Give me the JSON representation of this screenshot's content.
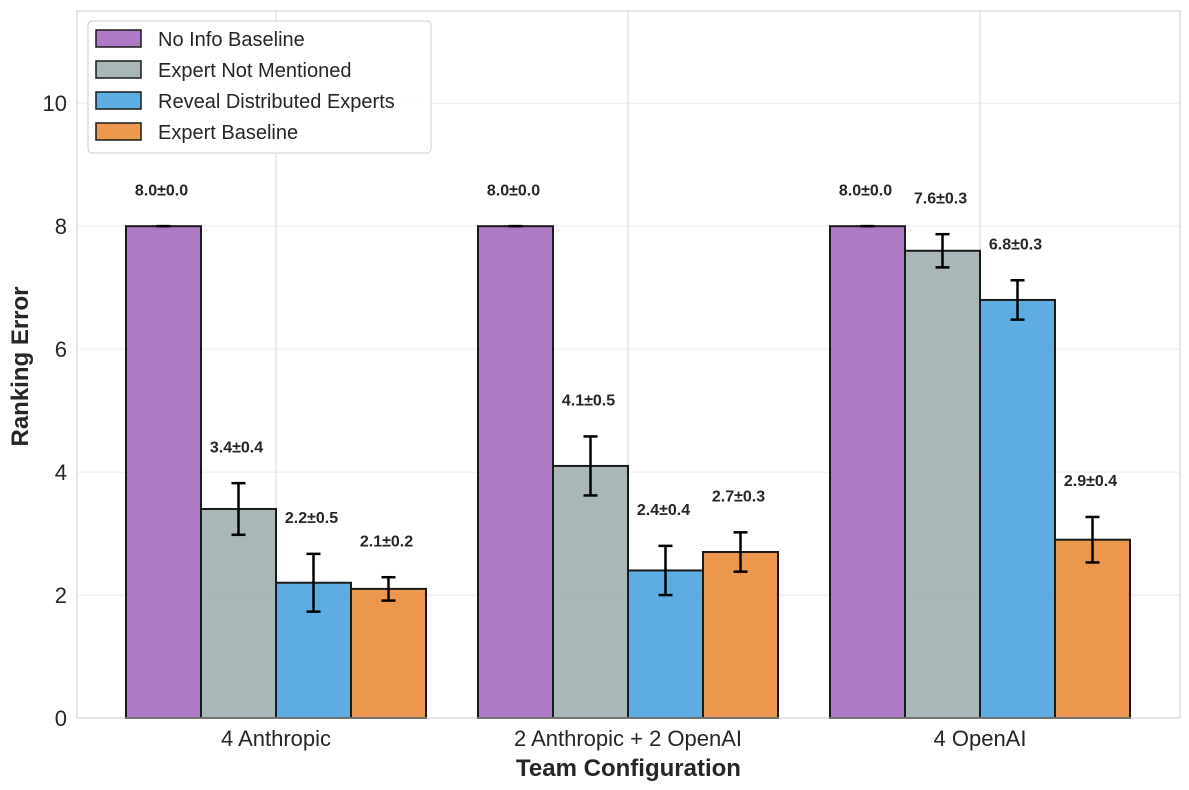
{
  "chart_data": {
    "type": "bar",
    "title": "",
    "xlabel": "Team Configuration",
    "ylabel": "Ranking Error",
    "ylim": [
      0,
      11.5
    ],
    "yticks": [
      0,
      2,
      4,
      6,
      8,
      10
    ],
    "grid": true,
    "legend_position": "top-left",
    "categories": [
      "4 Anthropic",
      "2 Anthropic + 2 OpenAI",
      "4 OpenAI"
    ],
    "series": [
      {
        "name": "No Info Baseline",
        "color": "#9b59b6",
        "values": [
          8.0,
          8.0,
          8.0
        ],
        "errors": [
          0.0,
          0.0,
          0.0
        ],
        "labels": [
          "8.0±0.0",
          "8.0±0.0",
          "8.0±0.0"
        ]
      },
      {
        "name": "Expert Not Mentioned",
        "color": "#95a5a6",
        "values": [
          3.4,
          4.1,
          7.6
        ],
        "errors": [
          0.42,
          0.48,
          0.27
        ],
        "labels": [
          "3.4±0.4",
          "4.1±0.5",
          "7.6±0.3"
        ]
      },
      {
        "name": "Reveal Distributed Experts",
        "color": "#3498db",
        "values": [
          2.2,
          2.4,
          6.8
        ],
        "errors": [
          0.47,
          0.4,
          0.32
        ],
        "labels": [
          "2.2±0.5",
          "2.4±0.4",
          "6.8±0.3"
        ]
      },
      {
        "name": "Expert Baseline",
        "color": "#e67e22",
        "values": [
          2.1,
          2.7,
          2.9
        ],
        "errors": [
          0.19,
          0.32,
          0.37
        ],
        "labels": [
          "2.1±0.2",
          "2.7±0.3",
          "2.9±0.4"
        ]
      }
    ]
  }
}
